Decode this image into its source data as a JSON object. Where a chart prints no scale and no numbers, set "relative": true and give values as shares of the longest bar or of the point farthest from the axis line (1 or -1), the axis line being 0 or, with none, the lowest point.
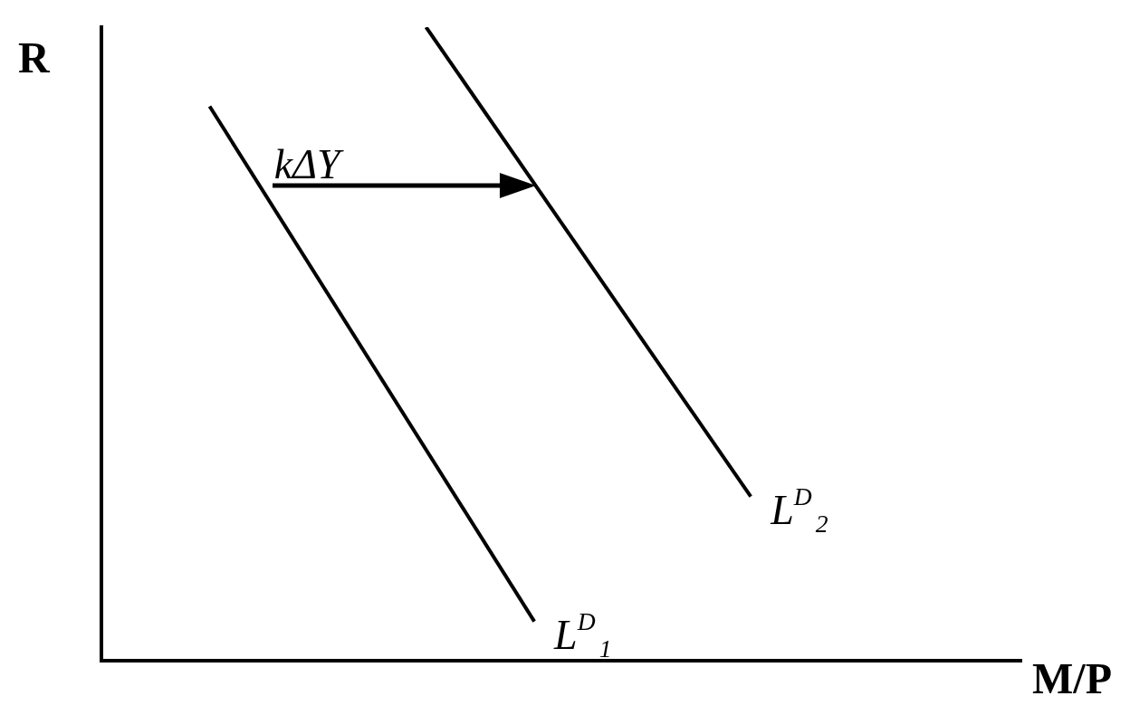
{
  "chart_data": {
    "type": "line",
    "relative": true,
    "xlabel": "M/P",
    "ylabel": "R",
    "legend": false,
    "grid": false,
    "marker": "none",
    "line_style": "solid",
    "categories": [
      null,
      null,
      null,
      null,
      null,
      null,
      null,
      null,
      null,
      null,
      null,
      null,
      null,
      null,
      null,
      null,
      null,
      null
    ],
    "series": [
      {
        "name": "L$^{D}$$_{1}$",
        "color": "#000000",
        "values": [
          null,
          null,
          0.875,
          null,
          null,
          null,
          null,
          null,
          0.062,
          null,
          null,
          null,
          null,
          null,
          null,
          null,
          null,
          null
        ]
      },
      {
        "name": "L$^{D}$$_{2}$",
        "color": "#000000",
        "values": [
          null,
          null,
          null,
          null,
          null,
          null,
          1,
          null,
          null,
          null,
          null,
          null,
          0.259,
          null,
          null,
          null,
          null,
          null
        ]
      }
    ],
    "annotations": [
      "kΔY"
    ]
  }
}
